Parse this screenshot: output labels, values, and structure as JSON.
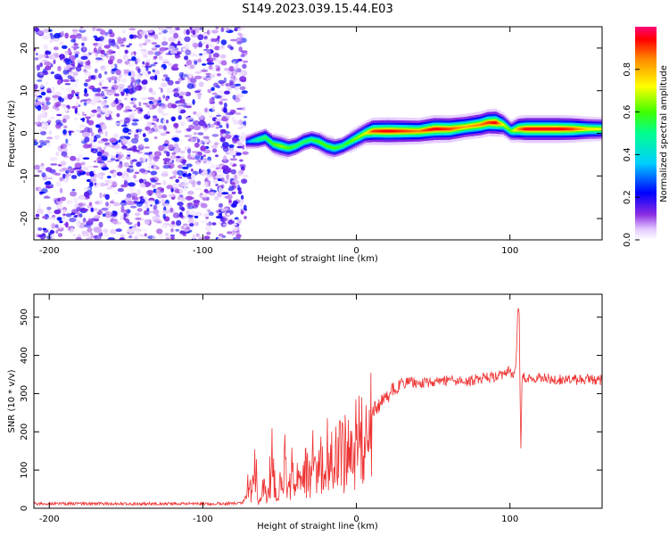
{
  "title": "S149.2023.039.15.44.E03",
  "chart_data": [
    {
      "type": "heatmap",
      "xlabel": "Height of straight line (km)",
      "ylabel": "Frequency (Hz)",
      "xlim": [
        -210,
        160
      ],
      "ylim": [
        -25,
        25
      ],
      "xticks": [
        -200,
        -100,
        0,
        100
      ],
      "yticks": [
        -20,
        -10,
        0,
        10,
        20
      ],
      "noise_region_x": [
        -210,
        -72
      ],
      "ridge": {
        "x": [
          -72,
          -65,
          -60,
          -55,
          -50,
          -45,
          -40,
          -35,
          -30,
          -25,
          -20,
          -15,
          -10,
          -5,
          0,
          5,
          10,
          20,
          30,
          40,
          50,
          60,
          70,
          80,
          85,
          90,
          95,
          100,
          105,
          110,
          120,
          130,
          140,
          150,
          160
        ],
        "freq": [
          -2,
          -1.5,
          -1,
          -2.5,
          -3,
          -3.5,
          -3,
          -2,
          -1.5,
          -2,
          -3,
          -3.5,
          -3,
          -2,
          -1,
          0,
          0.5,
          0.5,
          0.5,
          0.5,
          1,
          1,
          1.5,
          2,
          2.5,
          2.5,
          2,
          0.5,
          1,
          1,
          1,
          1,
          1,
          1,
          1
        ],
        "amplitude": [
          0.3,
          0.5,
          0.55,
          0.6,
          0.65,
          0.6,
          0.55,
          0.55,
          0.55,
          0.6,
          0.6,
          0.6,
          0.55,
          0.6,
          0.65,
          0.7,
          0.9,
          0.95,
          0.9,
          0.85,
          0.95,
          0.9,
          0.8,
          0.85,
          0.9,
          0.95,
          0.7,
          0.6,
          0.85,
          0.95,
          0.95,
          0.95,
          0.9,
          0.75,
          0.7
        ]
      },
      "colorbar": {
        "label": "Normalized spectral amplitude",
        "range": [
          0,
          1
        ],
        "ticks": [
          0.0,
          0.2,
          0.4,
          0.6,
          0.8
        ],
        "tick_labels": [
          "0.0",
          "0.2",
          "0.4",
          "0.6",
          "0.8"
        ]
      }
    },
    {
      "type": "line",
      "xlabel": "Height of straight line (km)",
      "ylabel": "SNR (10 * v/v)",
      "xlim": [
        -210,
        160
      ],
      "ylim": [
        0,
        560
      ],
      "xticks": [
        -200,
        -100,
        0,
        100
      ],
      "yticks": [
        0,
        100,
        200,
        300,
        400,
        500
      ],
      "color": "#ee3333",
      "series": [
        {
          "x": [
            -210,
            -180,
            -150,
            -120,
            -100,
            -85,
            -78,
            -74,
            -72,
            -70,
            -68,
            -66,
            -64,
            -62,
            -60,
            -58,
            -55,
            -52,
            -50,
            -47,
            -45,
            -42,
            -40,
            -37,
            -35,
            -32,
            -30,
            -27,
            -25,
            -22,
            -20,
            -18,
            -15,
            -12,
            -10,
            -7,
            -5,
            -2,
            0,
            5,
            10,
            15,
            20,
            25,
            30,
            35,
            40,
            50,
            60,
            70,
            80,
            90,
            95,
            100,
            102,
            104,
            105,
            106,
            107,
            108,
            109,
            110,
            115,
            120,
            130,
            140,
            150,
            160
          ],
          "y": [
            12,
            12,
            12,
            12,
            12,
            12,
            13,
            15,
            30,
            80,
            60,
            200,
            40,
            20,
            110,
            30,
            150,
            40,
            70,
            160,
            50,
            120,
            60,
            170,
            90,
            130,
            80,
            210,
            100,
            180,
            120,
            230,
            150,
            170,
            170,
            195,
            190,
            210,
            220,
            240,
            255,
            270,
            295,
            310,
            325,
            330,
            330,
            330,
            335,
            330,
            340,
            345,
            350,
            360,
            340,
            380,
            500,
            540,
            140,
            360,
            345,
            335,
            338,
            340,
            338,
            335,
            338,
            335
          ]
        }
      ]
    }
  ]
}
